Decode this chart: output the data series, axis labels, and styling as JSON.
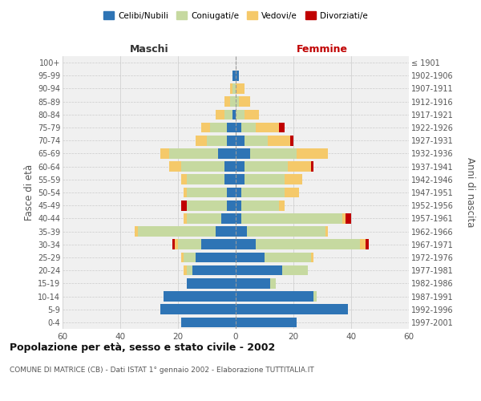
{
  "age_groups": [
    "0-4",
    "5-9",
    "10-14",
    "15-19",
    "20-24",
    "25-29",
    "30-34",
    "35-39",
    "40-44",
    "45-49",
    "50-54",
    "55-59",
    "60-64",
    "65-69",
    "70-74",
    "75-79",
    "80-84",
    "85-89",
    "90-94",
    "95-99",
    "100+"
  ],
  "birth_years": [
    "1997-2001",
    "1992-1996",
    "1987-1991",
    "1982-1986",
    "1977-1981",
    "1972-1976",
    "1967-1971",
    "1962-1966",
    "1957-1961",
    "1952-1956",
    "1947-1951",
    "1942-1946",
    "1937-1941",
    "1932-1936",
    "1927-1931",
    "1922-1926",
    "1917-1921",
    "1912-1916",
    "1907-1911",
    "1902-1906",
    "≤ 1901"
  ],
  "maschi": {
    "celibi": [
      19,
      26,
      25,
      17,
      15,
      14,
      12,
      7,
      5,
      3,
      3,
      4,
      4,
      6,
      3,
      3,
      1,
      0,
      0,
      1,
      0
    ],
    "coniugati": [
      0,
      0,
      0,
      0,
      2,
      4,
      8,
      27,
      12,
      14,
      14,
      13,
      15,
      17,
      7,
      6,
      3,
      2,
      1,
      0,
      0
    ],
    "vedovi": [
      0,
      0,
      0,
      0,
      1,
      1,
      1,
      1,
      1,
      0,
      1,
      2,
      4,
      3,
      4,
      3,
      3,
      2,
      1,
      0,
      0
    ],
    "divorziati": [
      0,
      0,
      0,
      0,
      0,
      0,
      1,
      0,
      0,
      2,
      0,
      0,
      0,
      0,
      0,
      0,
      0,
      0,
      0,
      0,
      0
    ]
  },
  "femmine": {
    "nubili": [
      21,
      39,
      27,
      12,
      16,
      10,
      7,
      4,
      2,
      2,
      2,
      3,
      3,
      5,
      3,
      2,
      0,
      0,
      0,
      1,
      0
    ],
    "coniugate": [
      0,
      0,
      1,
      2,
      9,
      16,
      36,
      27,
      35,
      13,
      15,
      14,
      15,
      16,
      8,
      5,
      3,
      1,
      0,
      0,
      0
    ],
    "vedove": [
      0,
      0,
      0,
      0,
      0,
      1,
      2,
      1,
      1,
      2,
      5,
      6,
      8,
      11,
      8,
      8,
      5,
      4,
      3,
      0,
      0
    ],
    "divorziate": [
      0,
      0,
      0,
      0,
      0,
      0,
      1,
      0,
      2,
      0,
      0,
      0,
      1,
      0,
      1,
      2,
      0,
      0,
      0,
      0,
      0
    ]
  },
  "colors": {
    "celibi": "#2E74B5",
    "coniugati": "#C6D9A0",
    "vedovi": "#F5C96A",
    "divorziati": "#C00000"
  },
  "xlim": 60,
  "title": "Popolazione per età, sesso e stato civile - 2002",
  "subtitle": "COMUNE DI MATRICE (CB) - Dati ISTAT 1° gennaio 2002 - Elaborazione TUTTITALIA.IT",
  "ylabel_left": "Fasce di età",
  "ylabel_right": "Anni di nascita",
  "xlabel_left": "Maschi",
  "xlabel_right": "Femmine",
  "legend_labels": [
    "Celibi/Nubili",
    "Coniugati/e",
    "Vedovi/e",
    "Divorziati/e"
  ],
  "bg_color": "#FFFFFF",
  "plot_bg": "#F0F0F0",
  "grid_color": "#CCCCCC"
}
